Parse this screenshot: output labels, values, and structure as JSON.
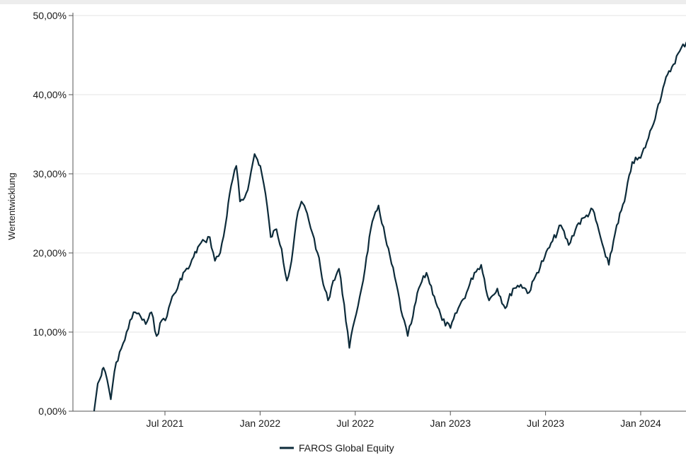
{
  "chart_data": {
    "type": "line",
    "ylabel": "Wertentwicklung",
    "ylim": [
      0,
      50
    ],
    "yticks": [
      "0,00%",
      "10,00%",
      "20,00%",
      "30,00%",
      "40,00%",
      "50,00%"
    ],
    "xticks": [
      "Jul 2021",
      "Jan 2022",
      "Jul 2022",
      "Jan 2023",
      "Jul 2023",
      "Jan 2024"
    ],
    "grid": true,
    "legend_position": "bottom-center",
    "series": [
      {
        "name": "FAROS Global Equity",
        "color": "#0d2b3a",
        "points": [
          [
            "2021-02-15",
            0.0
          ],
          [
            "2021-02-22",
            3.5
          ],
          [
            "2021-03-01",
            4.5
          ],
          [
            "2021-03-05",
            5.5
          ],
          [
            "2021-03-12",
            4.0
          ],
          [
            "2021-03-19",
            1.5
          ],
          [
            "2021-03-26",
            5.0
          ],
          [
            "2021-04-05",
            7.5
          ],
          [
            "2021-04-15",
            9.0
          ],
          [
            "2021-04-25",
            11.5
          ],
          [
            "2021-05-05",
            12.5
          ],
          [
            "2021-05-15",
            12.0
          ],
          [
            "2021-05-25",
            11.0
          ],
          [
            "2021-06-05",
            12.5
          ],
          [
            "2021-06-15",
            9.5
          ],
          [
            "2021-06-25",
            11.5
          ],
          [
            "2021-07-05",
            12.0
          ],
          [
            "2021-07-15",
            14.5
          ],
          [
            "2021-07-25",
            15.5
          ],
          [
            "2021-08-05",
            17.5
          ],
          [
            "2021-08-15",
            18.0
          ],
          [
            "2021-08-25",
            19.5
          ],
          [
            "2021-09-05",
            21.0
          ],
          [
            "2021-09-15",
            21.5
          ],
          [
            "2021-09-25",
            22.0
          ],
          [
            "2021-10-05",
            19.0
          ],
          [
            "2021-10-15",
            20.0
          ],
          [
            "2021-10-25",
            23.5
          ],
          [
            "2021-11-05",
            28.5
          ],
          [
            "2021-11-15",
            31.0
          ],
          [
            "2021-11-22",
            26.5
          ],
          [
            "2021-12-01",
            27.0
          ],
          [
            "2021-12-10",
            29.0
          ],
          [
            "2021-12-20",
            32.5
          ],
          [
            "2021-12-31",
            31.0
          ],
          [
            "2022-01-10",
            27.5
          ],
          [
            "2022-01-20",
            22.0
          ],
          [
            "2022-01-31",
            23.0
          ],
          [
            "2022-02-10",
            20.5
          ],
          [
            "2022-02-20",
            16.5
          ],
          [
            "2022-03-01",
            19.0
          ],
          [
            "2022-03-10",
            24.0
          ],
          [
            "2022-03-20",
            26.5
          ],
          [
            "2022-03-31",
            25.0
          ],
          [
            "2022-04-10",
            22.5
          ],
          [
            "2022-04-20",
            20.0
          ],
          [
            "2022-05-01",
            16.0
          ],
          [
            "2022-05-10",
            14.0
          ],
          [
            "2022-05-20",
            16.5
          ],
          [
            "2022-05-31",
            18.0
          ],
          [
            "2022-06-10",
            13.5
          ],
          [
            "2022-06-20",
            8.0
          ],
          [
            "2022-06-30",
            11.5
          ],
          [
            "2022-07-10",
            14.5
          ],
          [
            "2022-07-20",
            18.0
          ],
          [
            "2022-07-31",
            23.0
          ],
          [
            "2022-08-15",
            26.0
          ],
          [
            "2022-08-31",
            21.0
          ],
          [
            "2022-09-15",
            17.0
          ],
          [
            "2022-09-30",
            12.0
          ],
          [
            "2022-10-10",
            9.5
          ],
          [
            "2022-10-20",
            12.0
          ],
          [
            "2022-10-31",
            15.5
          ],
          [
            "2022-11-15",
            17.5
          ],
          [
            "2022-11-30",
            14.5
          ],
          [
            "2022-12-15",
            11.5
          ],
          [
            "2022-12-31",
            10.5
          ],
          [
            "2023-01-15",
            13.0
          ],
          [
            "2023-01-31",
            15.0
          ],
          [
            "2023-02-15",
            17.5
          ],
          [
            "2023-02-28",
            18.5
          ],
          [
            "2023-03-15",
            14.0
          ],
          [
            "2023-03-31",
            15.5
          ],
          [
            "2023-04-15",
            13.0
          ],
          [
            "2023-04-30",
            15.5
          ],
          [
            "2023-05-15",
            16.0
          ],
          [
            "2023-05-31",
            15.0
          ],
          [
            "2023-06-15",
            17.5
          ],
          [
            "2023-06-30",
            19.5
          ],
          [
            "2023-07-15",
            21.5
          ],
          [
            "2023-07-31",
            23.5
          ],
          [
            "2023-08-15",
            21.0
          ],
          [
            "2023-08-31",
            23.5
          ],
          [
            "2023-09-15",
            24.5
          ],
          [
            "2023-09-30",
            25.5
          ],
          [
            "2023-10-15",
            22.0
          ],
          [
            "2023-10-25",
            19.5
          ],
          [
            "2023-10-31",
            18.5
          ],
          [
            "2023-11-15",
            23.5
          ],
          [
            "2023-11-30",
            26.5
          ],
          [
            "2023-12-15",
            31.5
          ],
          [
            "2023-12-31",
            32.0
          ],
          [
            "2024-01-15",
            34.5
          ],
          [
            "2024-01-31",
            38.0
          ],
          [
            "2024-02-15",
            41.5
          ],
          [
            "2024-02-29",
            43.5
          ],
          [
            "2024-03-15",
            45.5
          ],
          [
            "2024-03-31",
            47.0
          ]
        ]
      }
    ]
  }
}
